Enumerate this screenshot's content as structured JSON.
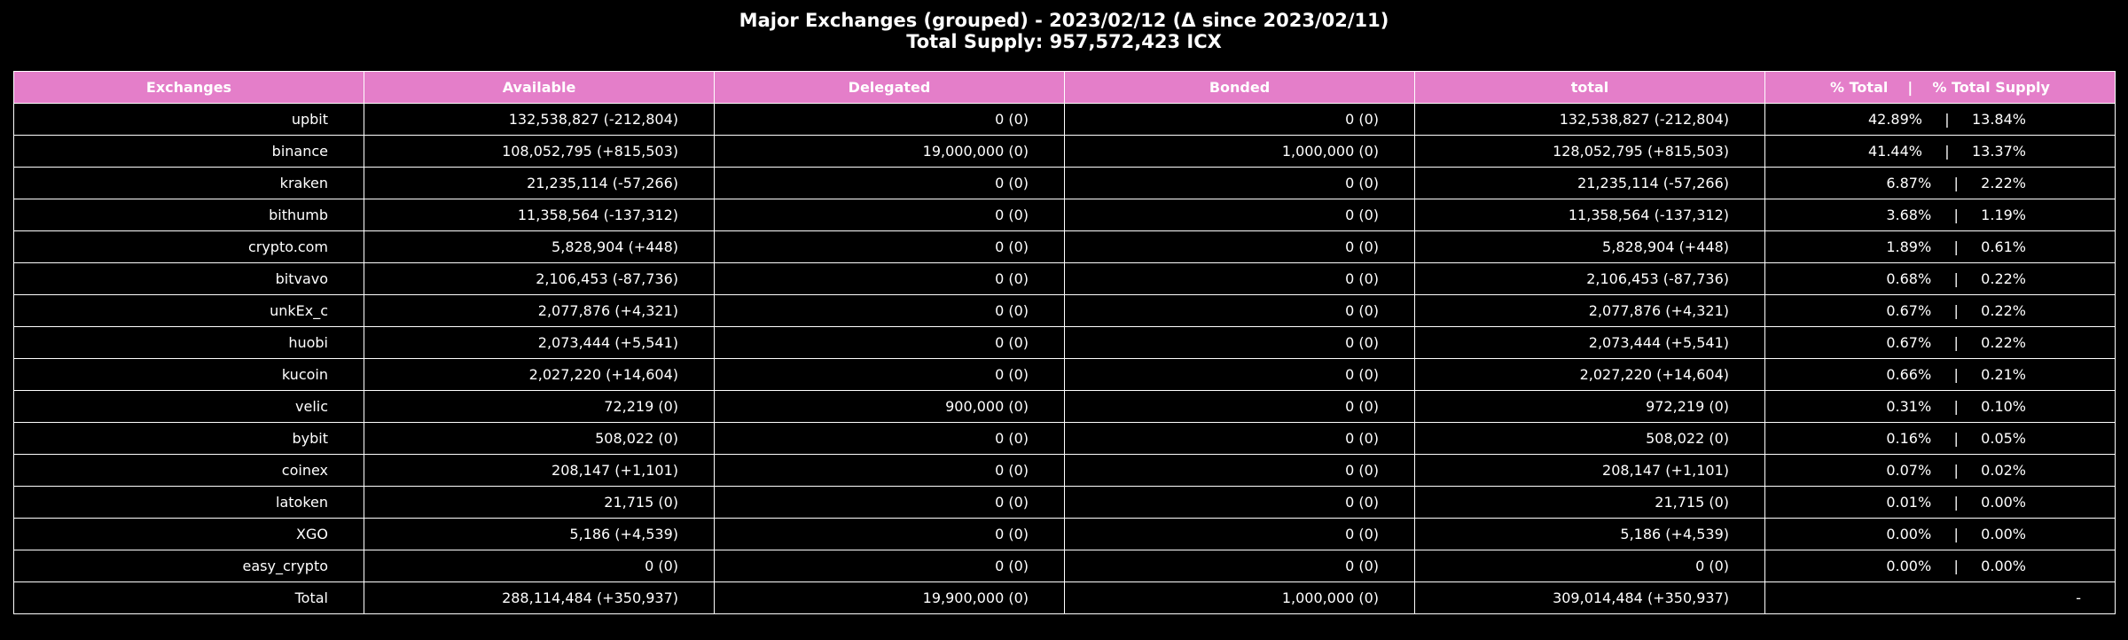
{
  "chart_data": {
    "type": "table",
    "title": "Major Exchanges (grouped) - 2023/02/12 (Δ since 2023/02/11)",
    "subtitle": "Total Supply: 957,572,423 ICX",
    "header_color": "#e47ec9",
    "columns": [
      "Exchanges",
      "Available",
      "Delegated",
      "Bonded",
      "total"
    ],
    "pct_header": {
      "left": "% Total",
      "sep": "|",
      "right": "% Total Supply"
    },
    "rows": [
      {
        "exchange": "upbit",
        "available": "132,538,827 (-212,804)",
        "delegated": "0 (0)",
        "bonded": "0 (0)",
        "total": "132,538,827 (-212,804)",
        "pct_total": "42.89%",
        "pct_supply": "13.84%"
      },
      {
        "exchange": "binance",
        "available": "108,052,795 (+815,503)",
        "delegated": "19,000,000 (0)",
        "bonded": "1,000,000 (0)",
        "total": "128,052,795 (+815,503)",
        "pct_total": "41.44%",
        "pct_supply": "13.37%"
      },
      {
        "exchange": "kraken",
        "available": "21,235,114 (-57,266)",
        "delegated": "0 (0)",
        "bonded": "0 (0)",
        "total": "21,235,114 (-57,266)",
        "pct_total": "6.87%",
        "pct_supply": "2.22%"
      },
      {
        "exchange": "bithumb",
        "available": "11,358,564 (-137,312)",
        "delegated": "0 (0)",
        "bonded": "0 (0)",
        "total": "11,358,564 (-137,312)",
        "pct_total": "3.68%",
        "pct_supply": "1.19%"
      },
      {
        "exchange": "crypto.com",
        "available": "5,828,904 (+448)",
        "delegated": "0 (0)",
        "bonded": "0 (0)",
        "total": "5,828,904 (+448)",
        "pct_total": "1.89%",
        "pct_supply": "0.61%"
      },
      {
        "exchange": "bitvavo",
        "available": "2,106,453 (-87,736)",
        "delegated": "0 (0)",
        "bonded": "0 (0)",
        "total": "2,106,453 (-87,736)",
        "pct_total": "0.68%",
        "pct_supply": "0.22%"
      },
      {
        "exchange": "unkEx_c",
        "available": "2,077,876 (+4,321)",
        "delegated": "0 (0)",
        "bonded": "0 (0)",
        "total": "2,077,876 (+4,321)",
        "pct_total": "0.67%",
        "pct_supply": "0.22%"
      },
      {
        "exchange": "huobi",
        "available": "2,073,444 (+5,541)",
        "delegated": "0 (0)",
        "bonded": "0 (0)",
        "total": "2,073,444 (+5,541)",
        "pct_total": "0.67%",
        "pct_supply": "0.22%"
      },
      {
        "exchange": "kucoin",
        "available": "2,027,220 (+14,604)",
        "delegated": "0 (0)",
        "bonded": "0 (0)",
        "total": "2,027,220 (+14,604)",
        "pct_total": "0.66%",
        "pct_supply": "0.21%"
      },
      {
        "exchange": "velic",
        "available": "72,219 (0)",
        "delegated": "900,000 (0)",
        "bonded": "0 (0)",
        "total": "972,219 (0)",
        "pct_total": "0.31%",
        "pct_supply": "0.10%"
      },
      {
        "exchange": "bybit",
        "available": "508,022 (0)",
        "delegated": "0 (0)",
        "bonded": "0 (0)",
        "total": "508,022 (0)",
        "pct_total": "0.16%",
        "pct_supply": "0.05%"
      },
      {
        "exchange": "coinex",
        "available": "208,147 (+1,101)",
        "delegated": "0 (0)",
        "bonded": "0 (0)",
        "total": "208,147 (+1,101)",
        "pct_total": "0.07%",
        "pct_supply": "0.02%"
      },
      {
        "exchange": "latoken",
        "available": "21,715 (0)",
        "delegated": "0 (0)",
        "bonded": "0 (0)",
        "total": "21,715 (0)",
        "pct_total": "0.01%",
        "pct_supply": "0.00%"
      },
      {
        "exchange": "XGO",
        "available": "5,186 (+4,539)",
        "delegated": "0 (0)",
        "bonded": "0 (0)",
        "total": "5,186 (+4,539)",
        "pct_total": "0.00%",
        "pct_supply": "0.00%"
      },
      {
        "exchange": "easy_crypto",
        "available": "0 (0)",
        "delegated": "0 (0)",
        "bonded": "0 (0)",
        "total": "0 (0)",
        "pct_total": "0.00%",
        "pct_supply": "0.00%"
      }
    ],
    "pct_sep": "|",
    "total_row": {
      "exchange": "Total",
      "available": "288,114,484 (+350,937)",
      "delegated": "19,900,000 (0)",
      "bonded": "1,000,000 (0)",
      "total": "309,014,484 (+350,937)",
      "pct": "-"
    }
  }
}
